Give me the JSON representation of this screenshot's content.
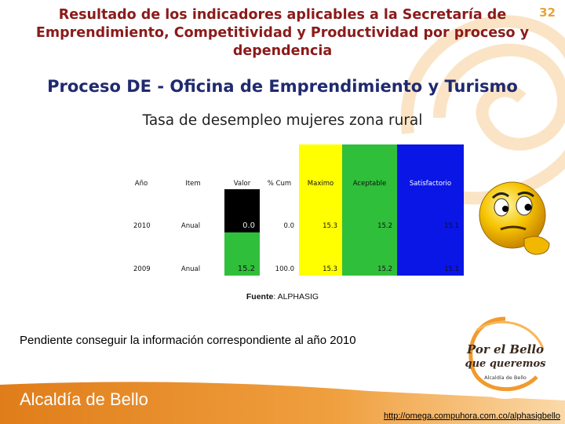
{
  "slide": {
    "page_number": "32",
    "title": "Resultado de los indicadores aplicables a la Secretaría de Emprendimiento, Competitividad y Productividad  por proceso y dependencia",
    "subtitle": "Proceso DE - Oficina de Emprendimiento y Turismo",
    "chart_title": "Tasa de desempleo mujeres zona rural"
  },
  "table": {
    "headers": [
      "Año",
      "Item",
      "Valor",
      "% Cum",
      "Maximo",
      "Aceptable",
      "Satisfactorio"
    ],
    "rows": [
      {
        "year": "2010",
        "item": "Anual",
        "valor": "0.0",
        "cum": "0.0",
        "maximo": "15.3",
        "aceptable": "15.2",
        "satisfactorio": "15.1",
        "valor_color": "#000000"
      },
      {
        "year": "2009",
        "item": "Anual",
        "valor": "15.2",
        "cum": "100.0",
        "maximo": "15.3",
        "aceptable": "15.2",
        "satisfactorio": "15.1",
        "valor_color": "#2fbf3a"
      }
    ],
    "colors": {
      "maximo": "#ffff00",
      "aceptable": "#2fbf3a",
      "satisfactorio": "#0a16e6"
    }
  },
  "source": {
    "label": "Fuente",
    "value": ": ALPHASIG"
  },
  "note": "Pendiente conseguir la información correspondiente al año 2010",
  "footer": {
    "brand": "Alcaldía de Bello",
    "url": "http://omega.compuhora.com.co/alphasigbello",
    "logo_line1": "Por el Bello",
    "logo_line2": "que queremos",
    "logo_line3": "Alcaldía de Bello"
  },
  "icons": [
    "thinking-smiley-icon",
    "swirl-background",
    "por-el-bello-logo"
  ],
  "colors": {
    "title": "#8b1a1a",
    "subtitle": "#1f2a6e",
    "accent": "#e7a33a",
    "footer": "#e8902a"
  }
}
